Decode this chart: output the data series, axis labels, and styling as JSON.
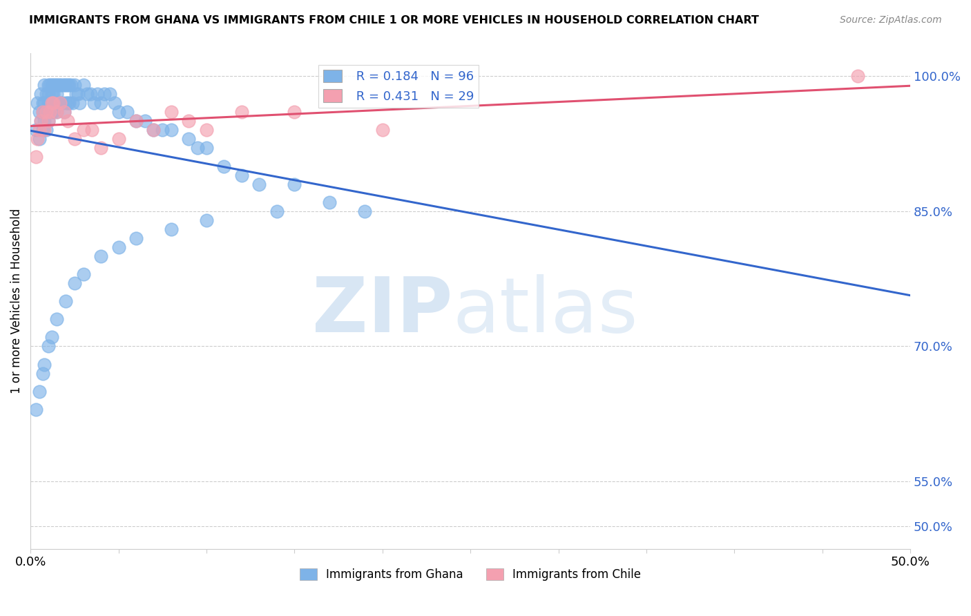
{
  "title": "IMMIGRANTS FROM GHANA VS IMMIGRANTS FROM CHILE 1 OR MORE VEHICLES IN HOUSEHOLD CORRELATION CHART",
  "source": "Source: ZipAtlas.com",
  "ylabel": "1 or more Vehicles in Household",
  "ylabel_ticks": [
    "100.0%",
    "85.0%",
    "70.0%",
    "55.0%",
    "50.0%"
  ],
  "ylabel_tick_vals": [
    1.0,
    0.85,
    0.7,
    0.55,
    0.5
  ],
  "xlim": [
    0.0,
    0.5
  ],
  "ylim": [
    0.475,
    1.025
  ],
  "ghana_color": "#7EB3E8",
  "chile_color": "#F4A0B0",
  "ghana_line_color": "#3366CC",
  "chile_line_color": "#E05070",
  "ghana_R": 0.184,
  "ghana_N": 96,
  "chile_R": 0.431,
  "chile_N": 29,
  "ghana_x": [
    0.003,
    0.004,
    0.005,
    0.005,
    0.006,
    0.006,
    0.007,
    0.007,
    0.007,
    0.008,
    0.008,
    0.008,
    0.009,
    0.009,
    0.009,
    0.01,
    0.01,
    0.01,
    0.01,
    0.01,
    0.011,
    0.011,
    0.011,
    0.012,
    0.012,
    0.012,
    0.012,
    0.013,
    0.013,
    0.013,
    0.014,
    0.014,
    0.015,
    0.015,
    0.015,
    0.016,
    0.016,
    0.017,
    0.017,
    0.018,
    0.018,
    0.019,
    0.019,
    0.02,
    0.02,
    0.021,
    0.021,
    0.022,
    0.022,
    0.023,
    0.024,
    0.025,
    0.026,
    0.027,
    0.028,
    0.03,
    0.032,
    0.034,
    0.036,
    0.038,
    0.04,
    0.042,
    0.045,
    0.048,
    0.05,
    0.055,
    0.06,
    0.065,
    0.07,
    0.075,
    0.08,
    0.09,
    0.095,
    0.1,
    0.11,
    0.12,
    0.13,
    0.15,
    0.17,
    0.19,
    0.003,
    0.005,
    0.007,
    0.008,
    0.01,
    0.012,
    0.015,
    0.02,
    0.025,
    0.03,
    0.04,
    0.05,
    0.06,
    0.08,
    0.1,
    0.14
  ],
  "ghana_y": [
    0.94,
    0.97,
    0.96,
    0.93,
    0.98,
    0.95,
    0.97,
    0.96,
    0.94,
    0.99,
    0.97,
    0.95,
    0.98,
    0.96,
    0.94,
    0.99,
    0.98,
    0.97,
    0.96,
    0.95,
    0.99,
    0.97,
    0.96,
    0.99,
    0.98,
    0.97,
    0.96,
    0.99,
    0.98,
    0.96,
    0.99,
    0.97,
    0.99,
    0.98,
    0.96,
    0.99,
    0.97,
    0.99,
    0.97,
    0.99,
    0.97,
    0.99,
    0.96,
    0.99,
    0.97,
    0.99,
    0.97,
    0.99,
    0.97,
    0.99,
    0.97,
    0.99,
    0.98,
    0.98,
    0.97,
    0.99,
    0.98,
    0.98,
    0.97,
    0.98,
    0.97,
    0.98,
    0.98,
    0.97,
    0.96,
    0.96,
    0.95,
    0.95,
    0.94,
    0.94,
    0.94,
    0.93,
    0.92,
    0.92,
    0.9,
    0.89,
    0.88,
    0.88,
    0.86,
    0.85,
    0.63,
    0.65,
    0.67,
    0.68,
    0.7,
    0.71,
    0.73,
    0.75,
    0.77,
    0.78,
    0.8,
    0.81,
    0.82,
    0.83,
    0.84,
    0.85
  ],
  "chile_x": [
    0.003,
    0.004,
    0.005,
    0.006,
    0.007,
    0.008,
    0.009,
    0.01,
    0.011,
    0.012,
    0.013,
    0.015,
    0.017,
    0.019,
    0.021,
    0.025,
    0.03,
    0.035,
    0.04,
    0.05,
    0.06,
    0.07,
    0.08,
    0.09,
    0.1,
    0.12,
    0.15,
    0.2,
    0.47
  ],
  "chile_y": [
    0.91,
    0.93,
    0.94,
    0.95,
    0.96,
    0.94,
    0.96,
    0.95,
    0.96,
    0.97,
    0.97,
    0.96,
    0.97,
    0.96,
    0.95,
    0.93,
    0.94,
    0.94,
    0.92,
    0.93,
    0.95,
    0.94,
    0.96,
    0.95,
    0.94,
    0.96,
    0.96,
    0.94,
    1.0
  ]
}
